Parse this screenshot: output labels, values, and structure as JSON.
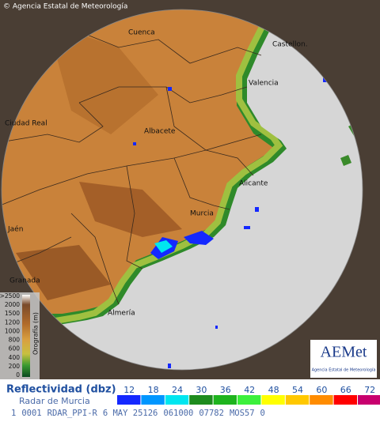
{
  "header": {
    "copyright": "© Agencia Estatal de Meteorología"
  },
  "cities": [
    "Cuenca",
    "Castellon.",
    "Valencia",
    "Ciudad Real",
    "Albacete",
    "Alicante",
    "Murcia",
    "Jaén",
    "Granada",
    "Almería"
  ],
  "orography": {
    "title": "Orografía (m)",
    "ticks": [
      ">2500",
      2000,
      1500,
      1200,
      1000,
      800,
      600,
      400,
      200,
      0
    ]
  },
  "logo": {
    "name": "AEMet",
    "subtitle": "Agencia Estatal de Meteorología"
  },
  "reflectivity": {
    "title": "Reflectividad (dbz)",
    "radar": "Radar de Murcia",
    "levels": [
      {
        "value": 12,
        "color": "#1428ff"
      },
      {
        "value": 18,
        "color": "#0096ff"
      },
      {
        "value": 24,
        "color": "#00e6f0"
      },
      {
        "value": 30,
        "color": "#1e8c1e"
      },
      {
        "value": 36,
        "color": "#1eb41e"
      },
      {
        "value": 42,
        "color": "#3cf03c"
      },
      {
        "value": 48,
        "color": "#ffff00"
      },
      {
        "value": 54,
        "color": "#ffc800"
      },
      {
        "value": 60,
        "color": "#ff8c00"
      },
      {
        "value": 66,
        "color": "#ff0000"
      },
      {
        "value": 72,
        "color": "#c8006e"
      }
    ]
  },
  "status": [
    "1",
    "0001",
    "RDAR_PPI-R",
    "6 MAY 25126",
    "061000",
    "07782",
    "MOS57",
    "0"
  ]
}
